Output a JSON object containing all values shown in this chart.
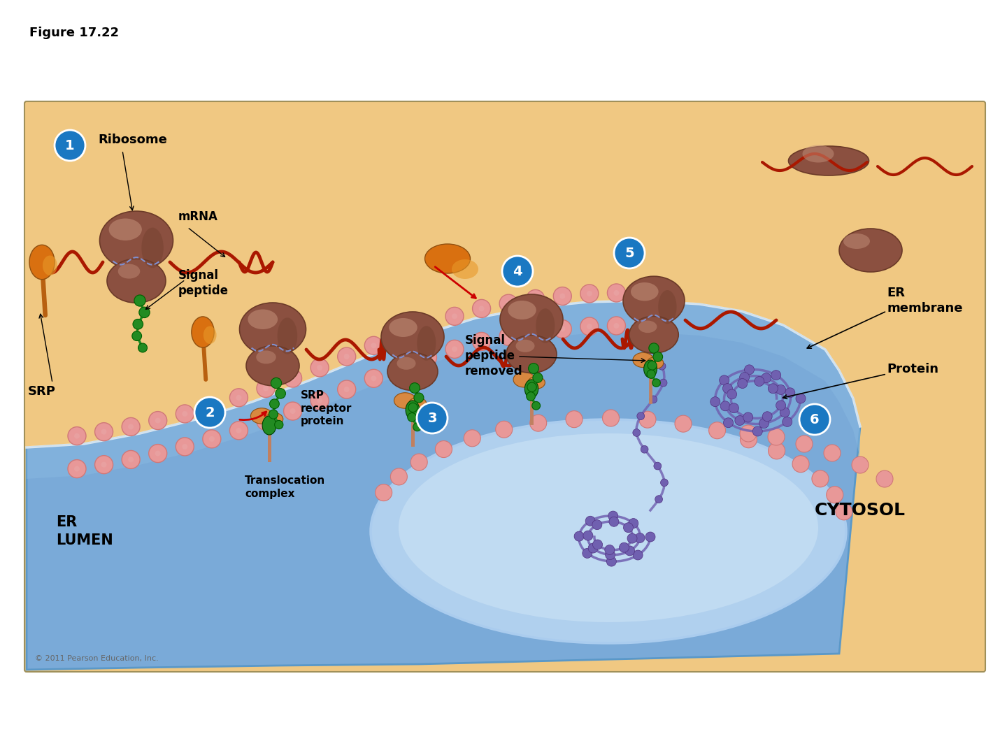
{
  "figure_label": "Figure 17.22",
  "bg_color": "#FFFFFF",
  "panel_bg": "#F0C882",
  "panel_border": "#A0905A",
  "ribosome_dark": "#6B3A28",
  "ribosome_mid": "#8B5040",
  "ribosome_light": "#C4907A",
  "mrna_color": "#AA1800",
  "signal_peptide_color": "#228B22",
  "srp_color": "#D97010",
  "step_circle_color": "#1A78C2",
  "protein_color": "#7060B0",
  "text_color": "#000000",
  "er_outer": "#7AAAD8",
  "er_mid": "#90BADE",
  "er_inner_lumen": "#B0D0EE",
  "er_inner2": "#C8E0F4",
  "membrane_band": "#88B8E0",
  "lipid_head": "#E89898",
  "lipid_tail": "#D07878",
  "srp_receptor_color": "#D88840",
  "transloc_color": "#E8A060",
  "labels": {
    "figure": "Figure 17.22",
    "ribosome": "Ribosome",
    "mrna": "mRNA",
    "signal_peptide": "Signal\npeptide",
    "srp": "SRP",
    "srp_receptor": "SRP\nreceptor\nprotein",
    "translocation": "Translocation\ncomplex",
    "er_lumen": "ER\nLUMEN",
    "er_membrane": "ER\nmembrane",
    "cytosol": "CYTOSOL",
    "signal_removed": "Signal\npeptide\nremoved",
    "protein": "Protein",
    "copyright": "© 2011 Pearson Education, Inc."
  }
}
